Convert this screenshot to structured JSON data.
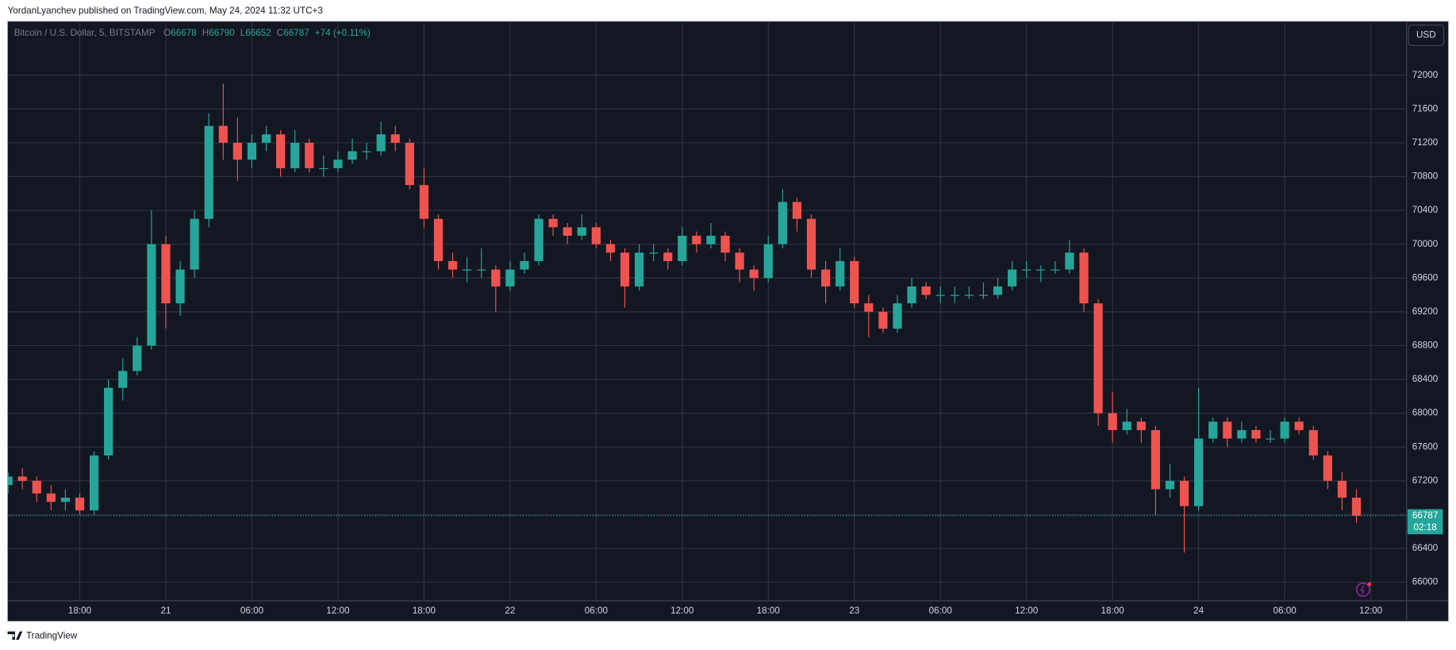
{
  "chart_data": {
    "type": "candlestick",
    "subtitle": "YordanLyanchev published on TradingView.com, May 24, 2024 11:32 UTC+3",
    "title": "Bitcoin / U.S. Dollar, 5, BITSTAMP",
    "legend_ohlc": [
      {
        "label": "O",
        "value": 66678
      },
      {
        "label": "H",
        "value": 66790
      },
      {
        "label": "L",
        "value": 66652
      },
      {
        "label": "C",
        "value": 66787
      }
    ],
    "change_label": "+74 (+0.11%)",
    "currency": "USD",
    "last_price": 66787,
    "countdown": "02:18",
    "brand": "TradingView",
    "up_color": "#26a69a",
    "down_color": "#ef5350",
    "grid": true,
    "xlim": [
      12.97,
      110.5
    ],
    "ylim": [
      65780,
      72637
    ],
    "yticks": [
      66000,
      66400,
      66800,
      67200,
      67600,
      68000,
      68400,
      68800,
      69200,
      69600,
      70000,
      70400,
      70800,
      71200,
      71600,
      72000
    ],
    "xticks": [
      {
        "value": 18,
        "label": "18:00"
      },
      {
        "value": 24,
        "label": "21"
      },
      {
        "value": 30,
        "label": "06:00"
      },
      {
        "value": 36,
        "label": "12:00"
      },
      {
        "value": 42,
        "label": "18:00"
      },
      {
        "value": 48,
        "label": "22"
      },
      {
        "value": 54,
        "label": "06:00"
      },
      {
        "value": 60,
        "label": "12:00"
      },
      {
        "value": 66,
        "label": "18:00"
      },
      {
        "value": 72,
        "label": "23"
      },
      {
        "value": 78,
        "label": "06:00"
      },
      {
        "value": 84,
        "label": "12:00"
      },
      {
        "value": 90,
        "label": "18:00"
      },
      {
        "value": 96,
        "label": "24"
      },
      {
        "value": 102,
        "label": "06:00"
      },
      {
        "value": 108,
        "label": "12:00"
      }
    ],
    "x": [
      13,
      14,
      15,
      16,
      17,
      18,
      19,
      20,
      21,
      22,
      23,
      24,
      25,
      26,
      27,
      28,
      29,
      30,
      31,
      32,
      33,
      34,
      35,
      36,
      37,
      38,
      39,
      40,
      41,
      42,
      43,
      44,
      45,
      46,
      47,
      48,
      49,
      50,
      51,
      52,
      53,
      54,
      55,
      56,
      57,
      58,
      59,
      60,
      61,
      62,
      63,
      64,
      65,
      66,
      67,
      68,
      69,
      70,
      71,
      72,
      73,
      74,
      75,
      76,
      77,
      78,
      79,
      80,
      81,
      82,
      83,
      84,
      85,
      86,
      87,
      88,
      89,
      90,
      91,
      92,
      93,
      94,
      95,
      96,
      97,
      98,
      99,
      100,
      101,
      102,
      103,
      104,
      105,
      106,
      107
    ],
    "open": [
      67150,
      67250,
      67200,
      67050,
      66950,
      67000,
      66850,
      67500,
      68300,
      68500,
      68800,
      70000,
      69300,
      69700,
      70300,
      71400,
      71200,
      71000,
      71200,
      71300,
      70900,
      71200,
      70900,
      70900,
      71000,
      71100,
      71100,
      71300,
      71200,
      70700,
      70300,
      69800,
      69700,
      69700,
      69700,
      69500,
      69700,
      69800,
      70300,
      70200,
      70100,
      70200,
      70000,
      69900,
      69500,
      69900,
      69900,
      69800,
      70100,
      70000,
      70100,
      69900,
      69700,
      69600,
      70000,
      70500,
      70300,
      69700,
      69500,
      69800,
      69300,
      69200,
      69000,
      69300,
      69500,
      69400,
      69400,
      69400,
      69400,
      69400,
      69500,
      69700,
      69700,
      69700,
      69700,
      69900,
      69300,
      68000,
      67800,
      67900,
      67800,
      67100,
      67200,
      66900,
      67700,
      67900,
      67700,
      67800,
      67700,
      67700,
      67900,
      67800,
      67500,
      67200,
      67000
    ],
    "high": [
      67300,
      67350,
      67250,
      67150,
      67100,
      67050,
      67550,
      68400,
      68650,
      68900,
      70400,
      70100,
      69800,
      70400,
      71550,
      71900,
      71500,
      71300,
      71400,
      71350,
      71350,
      71250,
      71050,
      71100,
      71250,
      71200,
      71450,
      71400,
      71250,
      70900,
      70350,
      69900,
      69850,
      69950,
      69750,
      69800,
      69900,
      70350,
      70350,
      70250,
      70350,
      70250,
      70050,
      69950,
      70000,
      70000,
      69950,
      70200,
      70150,
      70250,
      70150,
      69950,
      69750,
      70100,
      70650,
      70550,
      70350,
      69800,
      69950,
      69850,
      69400,
      69250,
      69400,
      69600,
      69550,
      69500,
      69500,
      69500,
      69550,
      69600,
      69800,
      69800,
      69750,
      69800,
      70050,
      69950,
      69350,
      68250,
      68050,
      67950,
      67850,
      67400,
      67250,
      68300,
      67950,
      67950,
      67900,
      67850,
      67800,
      67950,
      67950,
      67850,
      67550,
      67300,
      67100
    ],
    "low": [
      67050,
      67100,
      66950,
      66850,
      66850,
      66800,
      66800,
      67450,
      68150,
      68450,
      68750,
      69000,
      69150,
      69600,
      70200,
      71000,
      70750,
      70900,
      71100,
      70800,
      70850,
      70850,
      70800,
      70850,
      70950,
      71000,
      71050,
      71100,
      70650,
      70200,
      69700,
      69600,
      69550,
      69600,
      69200,
      69450,
      69650,
      69750,
      70100,
      70000,
      70050,
      69950,
      69800,
      69250,
      69450,
      69800,
      69700,
      69750,
      69900,
      69950,
      69800,
      69550,
      69450,
      69550,
      69950,
      70150,
      69600,
      69300,
      69450,
      69250,
      68900,
      68950,
      68950,
      69250,
      69350,
      69300,
      69300,
      69350,
      69350,
      69350,
      69450,
      69600,
      69550,
      69650,
      69650,
      69200,
      67850,
      67650,
      67750,
      67650,
      66800,
      67000,
      66350,
      66850,
      67650,
      67600,
      67650,
      67650,
      67650,
      67650,
      67750,
      67450,
      67100,
      66850,
      66700
    ],
    "close": [
      67250,
      67200,
      67050,
      66950,
      67000,
      66850,
      67500,
      68300,
      68500,
      68800,
      70000,
      69300,
      69700,
      70300,
      71400,
      71200,
      71000,
      71200,
      71300,
      70900,
      71200,
      70900,
      70900,
      71000,
      71100,
      71100,
      71300,
      71200,
      70700,
      70300,
      69800,
      69700,
      69700,
      69700,
      69500,
      69700,
      69800,
      70300,
      70200,
      70100,
      70200,
      70000,
      69900,
      69500,
      69900,
      69900,
      69800,
      70100,
      70000,
      70100,
      69900,
      69700,
      69600,
      70000,
      70500,
      70300,
      69700,
      69500,
      69800,
      69300,
      69200,
      69000,
      69300,
      69500,
      69400,
      69400,
      69400,
      69400,
      69400,
      69500,
      69700,
      69700,
      69700,
      69700,
      69900,
      69300,
      68000,
      67800,
      67900,
      67800,
      67100,
      67200,
      66900,
      67700,
      67900,
      67700,
      67800,
      67700,
      67700,
      67900,
      67800,
      67500,
      67200,
      67000,
      66787
    ]
  }
}
